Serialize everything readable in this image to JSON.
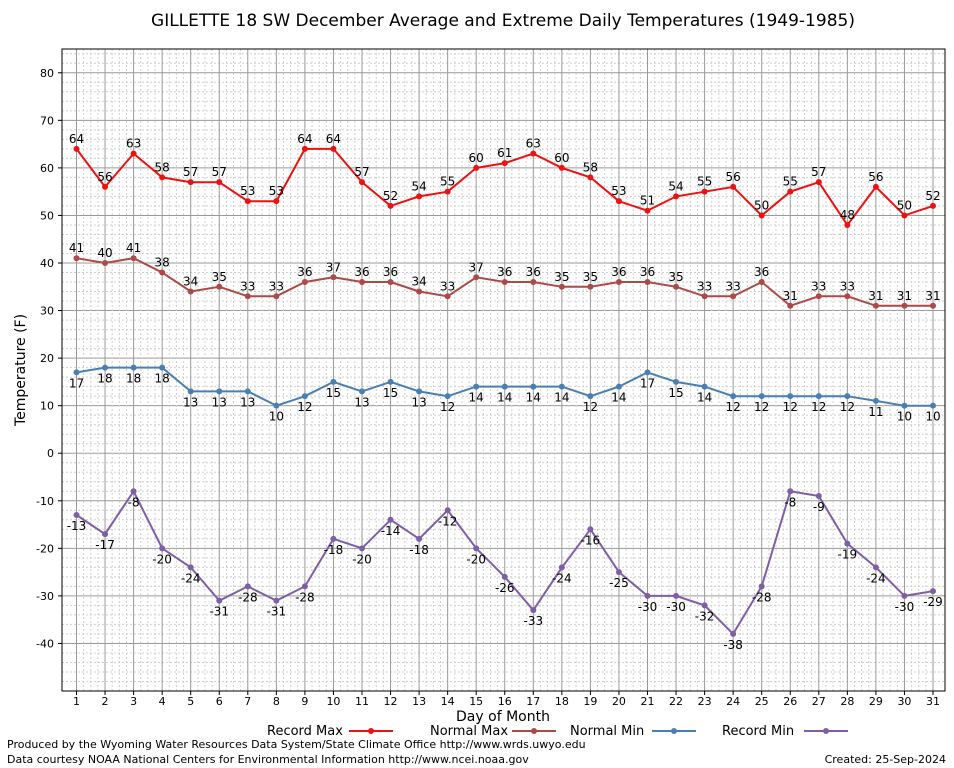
{
  "chart_data": {
    "type": "line",
    "title": "GILLETTE 18 SW December Average and Extreme Daily Temperatures (1949-1985)",
    "xlabel": "Day of Month",
    "ylabel": "Temperature (F)",
    "ylim": [
      -50,
      85
    ],
    "yticks": [
      80,
      70,
      60,
      50,
      40,
      30,
      20,
      10,
      0,
      -10,
      -20,
      -30,
      -40
    ],
    "x": [
      1,
      2,
      3,
      4,
      5,
      6,
      7,
      8,
      9,
      10,
      11,
      12,
      13,
      14,
      15,
      16,
      17,
      18,
      19,
      20,
      21,
      22,
      23,
      24,
      25,
      26,
      27,
      28,
      29,
      30,
      31
    ],
    "grid": true,
    "legend_position": "bottom",
    "series": [
      {
        "name": "Record Max",
        "color": "#ee1111",
        "label_pos": "above",
        "values": [
          64,
          56,
          63,
          58,
          57,
          57,
          53,
          53,
          64,
          64,
          57,
          52,
          54,
          55,
          60,
          61,
          63,
          60,
          58,
          53,
          51,
          54,
          55,
          56,
          50,
          55,
          57,
          48,
          56,
          50,
          52
        ]
      },
      {
        "name": "Normal Max",
        "color": "#b04848",
        "label_pos": "above",
        "values": [
          41,
          40,
          41,
          38,
          34,
          35,
          33,
          33,
          36,
          37,
          36,
          36,
          34,
          33,
          37,
          36,
          36,
          35,
          35,
          36,
          36,
          35,
          33,
          33,
          36,
          31,
          33,
          33,
          31,
          31,
          31
        ]
      },
      {
        "name": "Normal Min",
        "color": "#4a7fb5",
        "label_pos": "below",
        "values": [
          17,
          18,
          18,
          18,
          13,
          13,
          13,
          10,
          12,
          15,
          13,
          15,
          13,
          12,
          14,
          14,
          14,
          14,
          12,
          14,
          17,
          15,
          14,
          12,
          12,
          12,
          12,
          12,
          11,
          10,
          10
        ]
      },
      {
        "name": "Record Min",
        "color": "#7f5ea8",
        "label_pos": "below",
        "values": [
          -13,
          -17,
          -8,
          -20,
          -24,
          -31,
          -28,
          -31,
          -28,
          -18,
          -20,
          -14,
          -18,
          -12,
          -20,
          -26,
          -33,
          -24,
          -16,
          -25,
          -30,
          -30,
          -32,
          -38,
          -28,
          -8,
          -9,
          -19,
          -24,
          -30,
          -29
        ]
      }
    ]
  },
  "footer": {
    "produced_by": "Produced by the Wyoming Water Resources Data System/State Climate Office http://www.wrds.uwyo.edu",
    "data_courtesy": "Data courtesy NOAA National Centers for Environmental Information http://www.ncei.noaa.gov",
    "created": "Created:  25-Sep-2024"
  }
}
